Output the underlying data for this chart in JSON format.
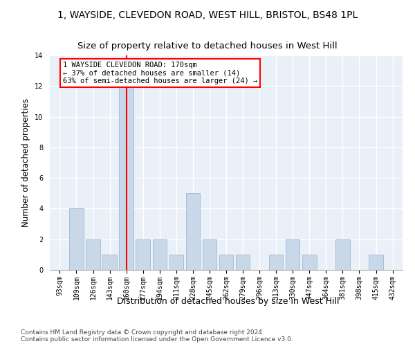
{
  "title": "1, WAYSIDE, CLEVEDON ROAD, WEST HILL, BRISTOL, BS48 1PL",
  "subtitle": "Size of property relative to detached houses in West Hill",
  "xlabel": "Distribution of detached houses by size in West Hill",
  "ylabel": "Number of detached properties",
  "footnote": "Contains HM Land Registry data © Crown copyright and database right 2024.\nContains public sector information licensed under the Open Government Licence v3.0.",
  "categories": [
    "93sqm",
    "109sqm",
    "126sqm",
    "143sqm",
    "160sqm",
    "177sqm",
    "194sqm",
    "211sqm",
    "228sqm",
    "245sqm",
    "262sqm",
    "279sqm",
    "296sqm",
    "313sqm",
    "330sqm",
    "347sqm",
    "364sqm",
    "381sqm",
    "398sqm",
    "415sqm",
    "432sqm"
  ],
  "values": [
    0,
    4,
    2,
    1,
    12,
    2,
    2,
    1,
    5,
    2,
    1,
    1,
    0,
    1,
    2,
    1,
    0,
    2,
    0,
    1,
    0
  ],
  "bar_color": "#c8d8e8",
  "bar_edge_color": "#a0b8d0",
  "property_line_x": 4,
  "annotation_text": "1 WAYSIDE CLEVEDON ROAD: 170sqm\n← 37% of detached houses are smaller (14)\n63% of semi-detached houses are larger (24) →",
  "annotation_box_color": "white",
  "annotation_box_edge": "red",
  "property_line_color": "red",
  "ylim": [
    0,
    14
  ],
  "yticks": [
    0,
    2,
    4,
    6,
    8,
    10,
    12,
    14
  ],
  "bg_color": "#eaf0f8",
  "grid_color": "white",
  "title_fontsize": 10,
  "subtitle_fontsize": 9.5,
  "xlabel_fontsize": 9,
  "ylabel_fontsize": 8.5,
  "tick_fontsize": 7,
  "footnote_fontsize": 6.5,
  "annotation_fontsize": 7.5
}
